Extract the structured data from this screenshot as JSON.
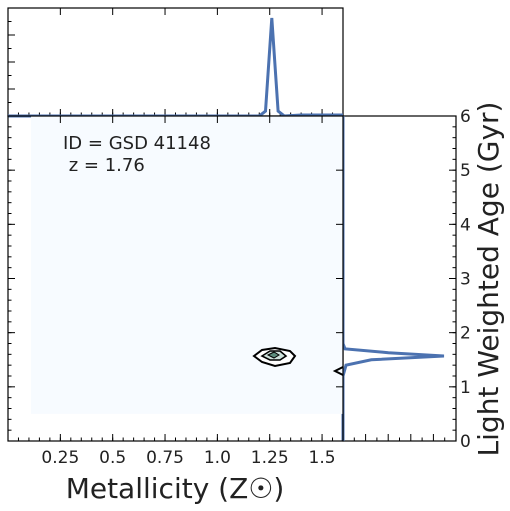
{
  "chart_data": {
    "type": "corner-plot",
    "panels": {
      "top_marginal": {
        "type": "line",
        "color": "#4C72B0",
        "x": [
          0.0,
          1.05,
          1.1,
          1.15,
          1.2,
          1.23,
          1.26,
          1.29,
          1.32,
          1.4,
          1.55,
          1.6
        ],
        "y": [
          0.0,
          0.0,
          0.0,
          0.0,
          0.0,
          0.05,
          1.0,
          0.05,
          0.0,
          0.01,
          0.01,
          0.01
        ]
      },
      "right_marginal": {
        "type": "line",
        "color": "#4C72B0",
        "age": [
          0.0,
          0.9,
          1.2,
          1.4,
          1.5,
          1.57,
          1.63,
          1.7,
          1.8,
          6.0
        ],
        "density": [
          0.0,
          0.0,
          0.0,
          0.03,
          0.28,
          1.0,
          0.45,
          0.02,
          0.0,
          0.0
        ]
      },
      "joint": {
        "type": "contour",
        "x_range": [
          0.0,
          1.6
        ],
        "y_range": [
          0.0,
          6.0
        ],
        "background_fill": {
          "x": [
            0.11,
            1.6
          ],
          "y": [
            0.5,
            6.0
          ],
          "color": "#F7FBFF"
        },
        "peak": {
          "x": 1.27,
          "y": 1.58,
          "color": "#5C8C7C"
        }
      }
    },
    "xlabel": "Metallicity (Z☉)",
    "ylabel": "Light Weighted Age (Gyr)",
    "xlim": [
      0.0,
      1.6
    ],
    "ylim": [
      0.0,
      6.0
    ],
    "x_ticks": [
      "0.25",
      "0.5",
      "0.75",
      "1.0",
      "1.25",
      "1.5"
    ],
    "y_ticks": [
      "0",
      "1",
      "2",
      "3",
      "4",
      "5",
      "6"
    ],
    "annotation": {
      "id_line": "ID = GSD 41148",
      "z_line": " z = 1.76"
    }
  }
}
